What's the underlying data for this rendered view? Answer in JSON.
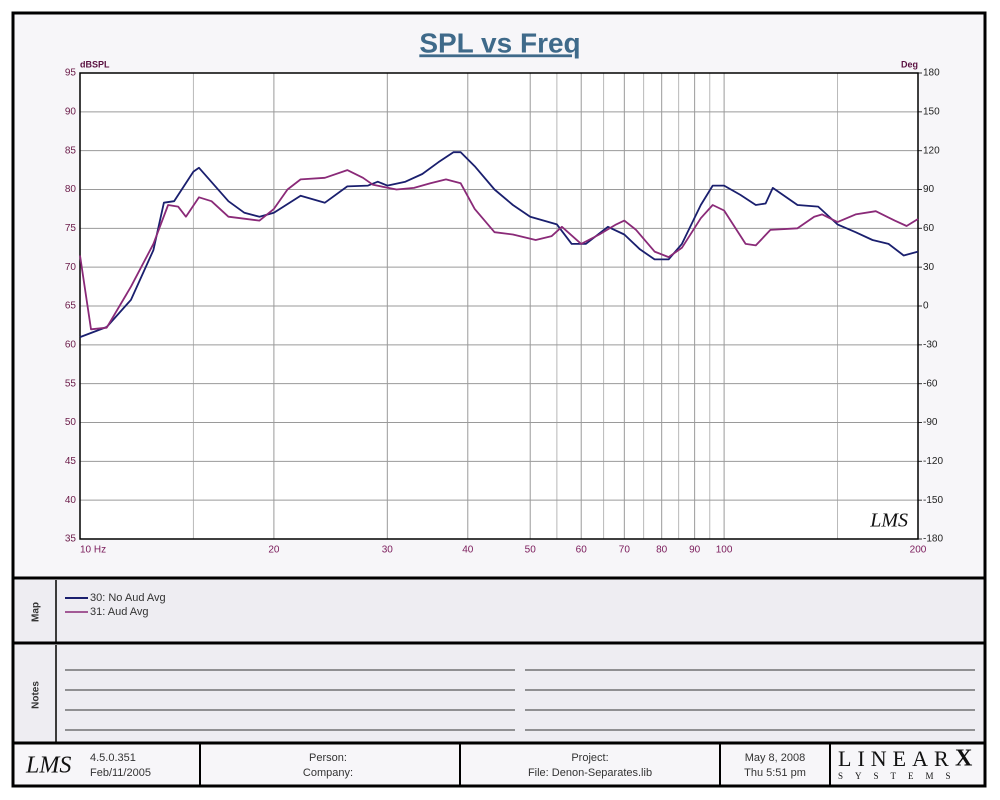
{
  "chart_data": {
    "type": "line",
    "title": "SPL vs Freq",
    "y_label": "dBSPL",
    "y2_label": "Deg",
    "x_scale": "log",
    "xlim": [
      10,
      200
    ],
    "xticks": [
      {
        "value": 10,
        "label": "10  Hz"
      },
      20,
      30,
      40,
      50,
      60,
      70,
      80,
      90,
      100,
      200
    ],
    "xminorticks": [
      15,
      55,
      65,
      75,
      85,
      95,
      150
    ],
    "ylim": [
      35,
      95
    ],
    "yticks": [
      35,
      40,
      45,
      50,
      55,
      60,
      65,
      70,
      75,
      80,
      85,
      90,
      95
    ],
    "y2lim": [
      -180,
      180
    ],
    "y2ticks": [
      -180,
      -150,
      -120,
      -90,
      -60,
      -30,
      0,
      30,
      60,
      90,
      120,
      150,
      180
    ],
    "grid": true,
    "watermark": "LMS",
    "series": [
      {
        "name": "30: No Aud Avg",
        "color": "#1a1f6e",
        "x": [
          10,
          11,
          12,
          13,
          13.5,
          14,
          15,
          15.3,
          17,
          18,
          19,
          20,
          22,
          24,
          26,
          28,
          29,
          30,
          32,
          34,
          36,
          38,
          39,
          41,
          44,
          47,
          50,
          55,
          58,
          61,
          66,
          70,
          74,
          78,
          82,
          86,
          92,
          96,
          100,
          106,
          112,
          116,
          119,
          130,
          140,
          150,
          160,
          170,
          180,
          190,
          200
        ],
        "values": [
          61,
          62.3,
          65.8,
          72.2,
          78.3,
          78.5,
          82.3,
          82.8,
          78.5,
          77,
          76.5,
          77,
          79.2,
          78.3,
          80.4,
          80.5,
          81,
          80.5,
          81,
          82,
          83.5,
          84.8,
          84.8,
          83,
          80,
          78,
          76.5,
          75.5,
          73,
          73,
          75.2,
          74.2,
          72.3,
          71,
          71,
          73,
          78,
          80.5,
          80.5,
          79.3,
          78,
          78.2,
          80.2,
          78,
          77.8,
          75.5,
          74.5,
          73.5,
          73,
          71.5,
          72
        ]
      },
      {
        "name": "31: Aud Avg",
        "color": "#8a2a78",
        "x": [
          10,
          10.4,
          11,
          12,
          13,
          13.7,
          14.2,
          14.6,
          15.3,
          16,
          17,
          19,
          20,
          21,
          22,
          24,
          26,
          27.5,
          28.5,
          31,
          33,
          35,
          37,
          39,
          41,
          44,
          47,
          51,
          54,
          56,
          60,
          64,
          68,
          70,
          73,
          78,
          82,
          86,
          92,
          96,
          100,
          108,
          112,
          118,
          130,
          138,
          142,
          150,
          160,
          172,
          184,
          192,
          200
        ],
        "values": [
          71.5,
          62,
          62.2,
          67.5,
          73,
          78,
          77.8,
          76.5,
          79,
          78.5,
          76.5,
          76,
          77.5,
          80,
          81.3,
          81.5,
          82.5,
          81.5,
          80.6,
          80,
          80.2,
          80.8,
          81.3,
          80.8,
          77.5,
          74.5,
          74.2,
          73.5,
          74,
          75.2,
          73,
          74.2,
          75.5,
          76,
          74.8,
          72,
          71.3,
          72.5,
          76.3,
          78,
          77.3,
          73,
          72.8,
          74.8,
          75,
          76.5,
          76.8,
          75.8,
          76.8,
          77.2,
          76,
          75.3,
          76.2
        ]
      }
    ]
  },
  "map": {
    "label": "Map"
  },
  "notes": {
    "label": "Notes"
  },
  "footer": {
    "logo": "LMS",
    "version": "4.5.0.351",
    "build_date": "Feb/11/2005",
    "person": "Person:",
    "company": "Company:",
    "project": "Project:",
    "file": "File: Denon-Separates.lib",
    "date": "May  8, 2008",
    "time": "Thu  5:51 pm",
    "brand": "LINEAR",
    "brand_x": "X",
    "brand_sub": "SYSTEMS"
  }
}
